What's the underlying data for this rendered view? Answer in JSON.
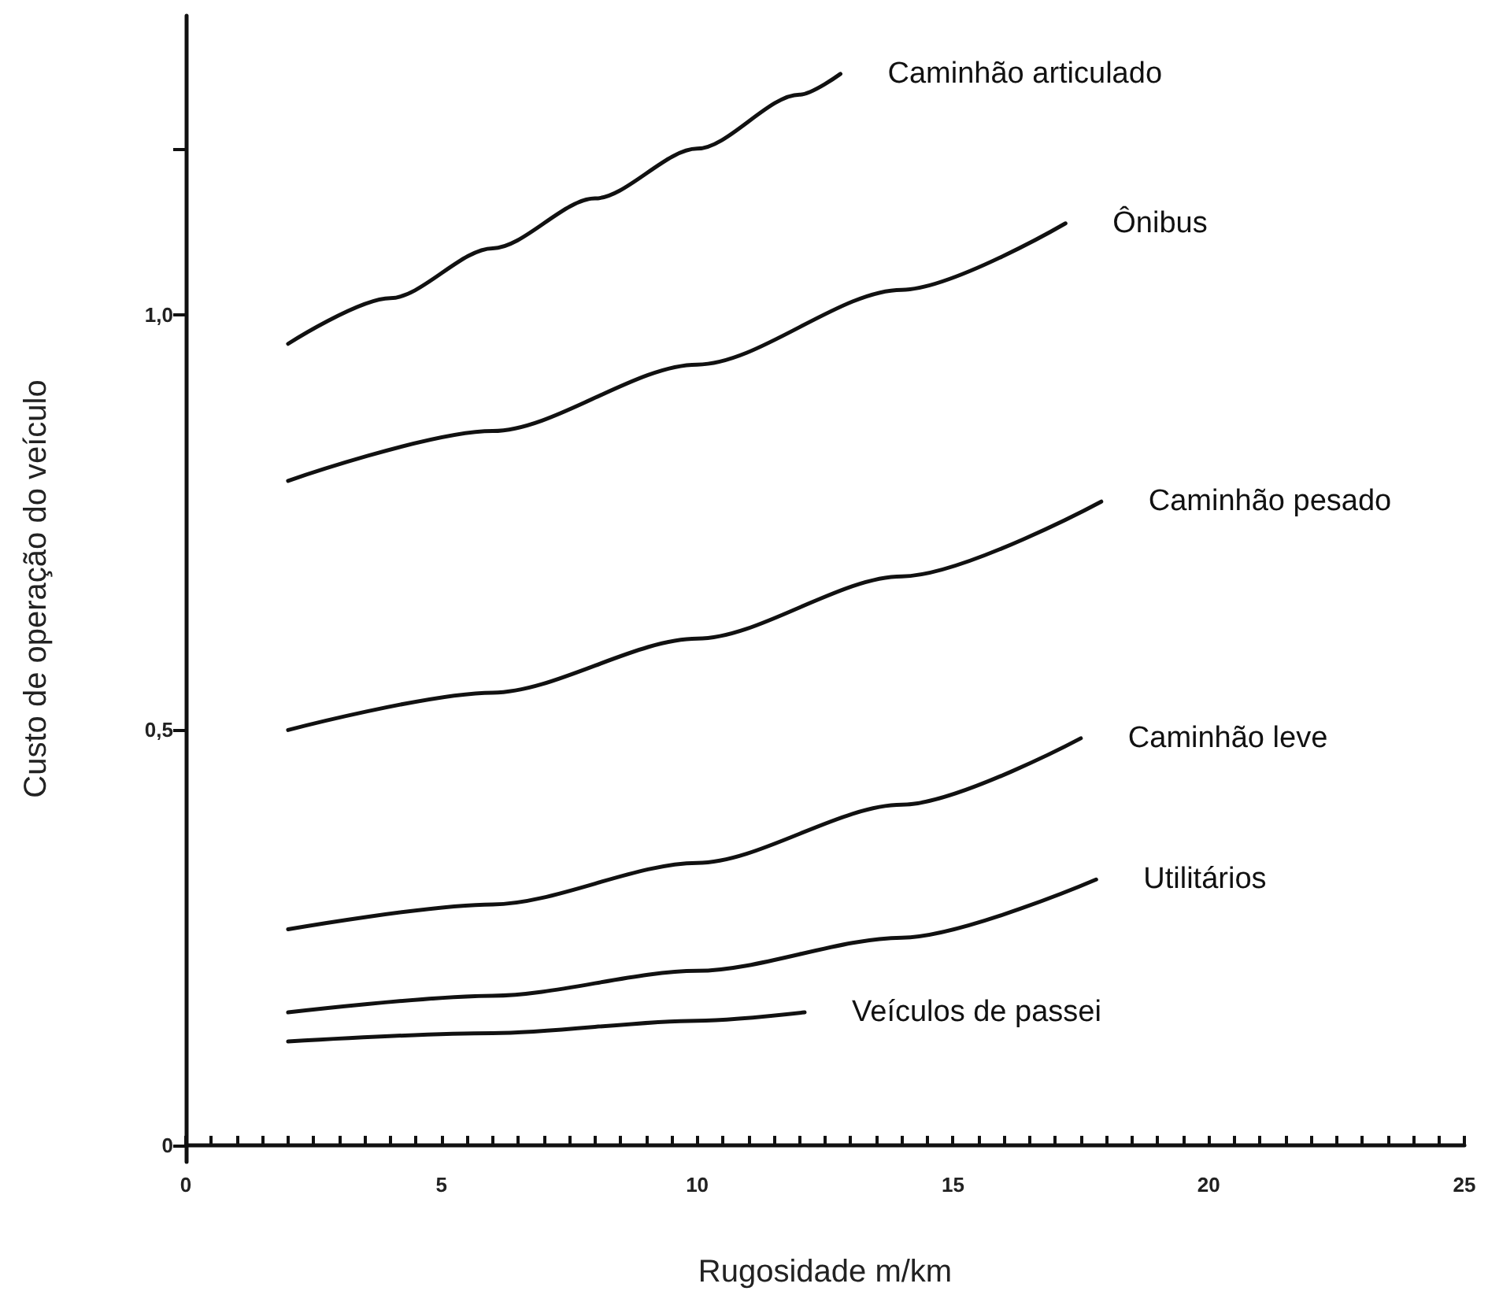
{
  "chart_data": {
    "type": "line",
    "xlabel": "Rugosidade m/km",
    "ylabel": "Custo de operação do veículo",
    "xlim": [
      0,
      25
    ],
    "ylim": [
      -0.02,
      1.36
    ],
    "xticks": [
      0,
      {
        "value": 0.5,
        "label": null
      },
      {
        "value": 1,
        "label": null
      },
      {
        "value": 1.5,
        "label": null
      },
      {
        "value": 2,
        "label": null
      },
      {
        "value": 2.5,
        "label": null
      },
      {
        "value": 3,
        "label": null
      },
      {
        "value": 3.5,
        "label": null
      },
      {
        "value": 4,
        "label": null
      },
      {
        "value": 4.5,
        "label": null
      },
      5,
      {
        "value": 5.5,
        "label": null
      },
      {
        "value": 6,
        "label": null
      },
      {
        "value": 6.5,
        "label": null
      },
      {
        "value": 7,
        "label": null
      },
      {
        "value": 7.5,
        "label": null
      },
      {
        "value": 8,
        "label": null
      },
      {
        "value": 8.5,
        "label": null
      },
      {
        "value": 9,
        "label": null
      },
      {
        "value": 9.5,
        "label": null
      },
      10,
      {
        "value": 10.5,
        "label": null
      },
      {
        "value": 11,
        "label": null
      },
      {
        "value": 11.5,
        "label": null
      },
      {
        "value": 12,
        "label": null
      },
      {
        "value": 12.5,
        "label": null
      },
      {
        "value": 13,
        "label": null
      },
      {
        "value": 13.5,
        "label": null
      },
      {
        "value": 14,
        "label": null
      },
      {
        "value": 14.5,
        "label": null
      },
      15,
      {
        "value": 15.5,
        "label": null
      },
      {
        "value": 16,
        "label": null
      },
      {
        "value": 16.5,
        "label": null
      },
      {
        "value": 17,
        "label": null
      },
      {
        "value": 17.5,
        "label": null
      },
      {
        "value": 18,
        "label": null
      },
      {
        "value": 18.5,
        "label": null
      },
      {
        "value": 19,
        "label": null
      },
      {
        "value": 19.5,
        "label": null
      },
      20,
      {
        "value": 20.5,
        "label": null
      },
      {
        "value": 21,
        "label": null
      },
      {
        "value": 21.5,
        "label": null
      },
      {
        "value": 22,
        "label": null
      },
      {
        "value": 22.5,
        "label": null
      },
      {
        "value": 23,
        "label": null
      },
      {
        "value": 23.5,
        "label": null
      },
      {
        "value": 24,
        "label": null
      },
      {
        "value": 24.5,
        "label": null
      },
      25
    ],
    "yticks": [
      {
        "value": 0,
        "label": "0"
      },
      {
        "value": 0.5,
        "label": "0,5"
      },
      {
        "value": 1,
        "label": "1,0"
      },
      {
        "value": 1.2,
        "label": null
      }
    ],
    "grid": false,
    "legend": false,
    "marker": "none",
    "line_style": "solid",
    "series": [
      {
        "name": "Caminhão articulado",
        "color": "#111111",
        "x": [
          2,
          4,
          6,
          8,
          10,
          12,
          12.8
        ],
        "values": [
          0.965,
          1.02,
          1.08,
          1.14,
          1.2,
          1.265,
          1.29
        ]
      },
      {
        "name": "Ônibus",
        "color": "#111111",
        "x": [
          2,
          6,
          10,
          14,
          17.2
        ],
        "values": [
          0.8,
          0.86,
          0.94,
          1.03,
          1.11
        ]
      },
      {
        "name": "Caminhão pesado",
        "color": "#111111",
        "x": [
          2,
          6,
          10,
          14,
          17.9
        ],
        "values": [
          0.5,
          0.545,
          0.61,
          0.685,
          0.775
        ]
      },
      {
        "name": "Caminhão leve",
        "color": "#111111",
        "x": [
          2,
          6,
          10,
          14,
          17.5
        ],
        "values": [
          0.26,
          0.29,
          0.34,
          0.41,
          0.49
        ]
      },
      {
        "name": "Utilitários",
        "color": "#111111",
        "x": [
          2,
          6,
          10,
          14,
          17.8
        ],
        "values": [
          0.16,
          0.18,
          0.21,
          0.25,
          0.32
        ]
      },
      {
        "name": "Veículos de passei",
        "color": "#111111",
        "x": [
          2,
          6,
          10,
          12.1
        ],
        "values": [
          0.125,
          0.135,
          0.15,
          0.16
        ]
      }
    ]
  }
}
